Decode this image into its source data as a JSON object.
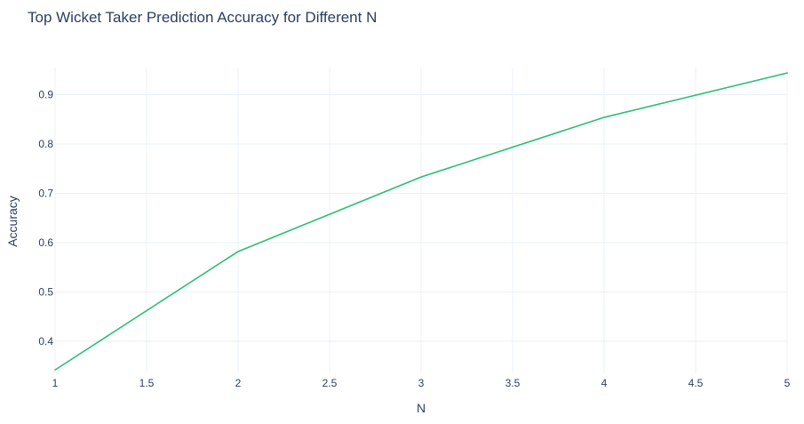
{
  "chart_data": {
    "type": "line",
    "title": "Top Wicket Taker Prediction Accuracy for Different N",
    "xlabel": "N",
    "ylabel": "Accuracy",
    "xlim": [
      1,
      5
    ],
    "ylim": [
      0.335,
      0.955
    ],
    "x_ticks": [
      1,
      1.5,
      2,
      2.5,
      3,
      3.5,
      4,
      4.5,
      5
    ],
    "x_tick_labels": [
      "1",
      "1.5",
      "2",
      "2.5",
      "3",
      "3.5",
      "4",
      "4.5",
      "5"
    ],
    "y_ticks": [
      0.4,
      0.5,
      0.6,
      0.7,
      0.8,
      0.9
    ],
    "y_tick_labels": [
      "0.4",
      "0.5",
      "0.6",
      "0.7",
      "0.8",
      "0.9"
    ],
    "grid": true,
    "series": [
      {
        "x": [
          1,
          2,
          3,
          4,
          5
        ],
        "values": [
          0.342,
          0.582,
          0.733,
          0.854,
          0.944
        ],
        "color": "#2dbe73"
      }
    ]
  }
}
